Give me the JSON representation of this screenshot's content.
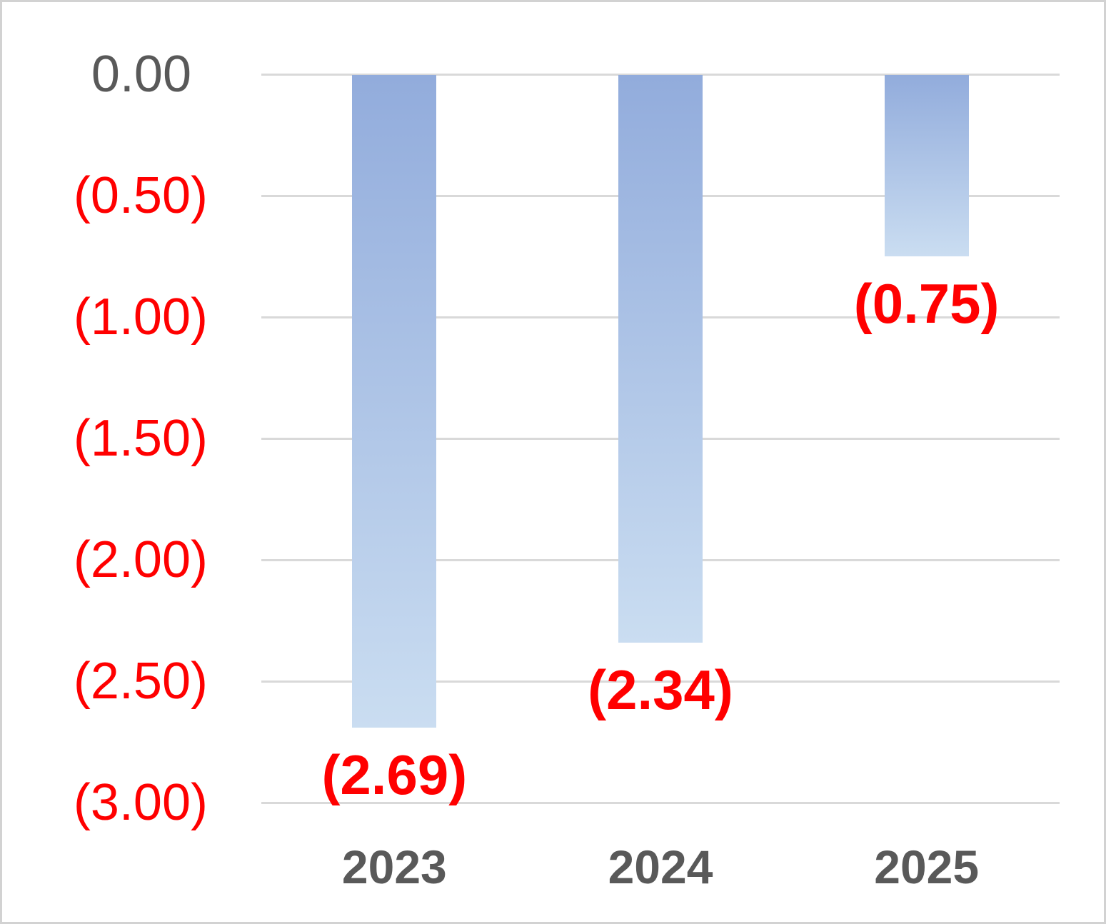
{
  "chart_data": {
    "type": "bar",
    "title": "",
    "orientation": "vertical-negative",
    "categories": [
      "2023",
      "2024",
      "2025"
    ],
    "values": [
      -2.69,
      -2.34,
      -0.75
    ],
    "data_labels": [
      "(2.69)",
      "(2.34)",
      "(0.75)"
    ],
    "data_label_position": "outside-end-below-bar",
    "y_axis": {
      "tick_labels": [
        "0.00",
        "(0.50)",
        "(1.00)",
        "(1.50)",
        "(2.00)",
        "(2.50)",
        "(3.00)"
      ],
      "tick_values": [
        0,
        -0.5,
        -1.0,
        -1.5,
        -2.0,
        -2.5,
        -3.0
      ],
      "min": -3.0,
      "max": 0.0,
      "number_format": "accounting-negatives-in-red-parentheses"
    },
    "x_axis": {
      "labels": [
        "2023",
        "2024",
        "2025"
      ]
    },
    "grid": "horizontal",
    "legend": "none",
    "colors": {
      "bar_gradient_top": "#92ACDC",
      "bar_gradient_bottom": "#CADDF1",
      "negative_text": "#FF0000",
      "axis_text": "#595959",
      "gridline": "#D9D9D9",
      "frame_border": "#D2D2D2",
      "background": "#FFFFFF"
    }
  }
}
